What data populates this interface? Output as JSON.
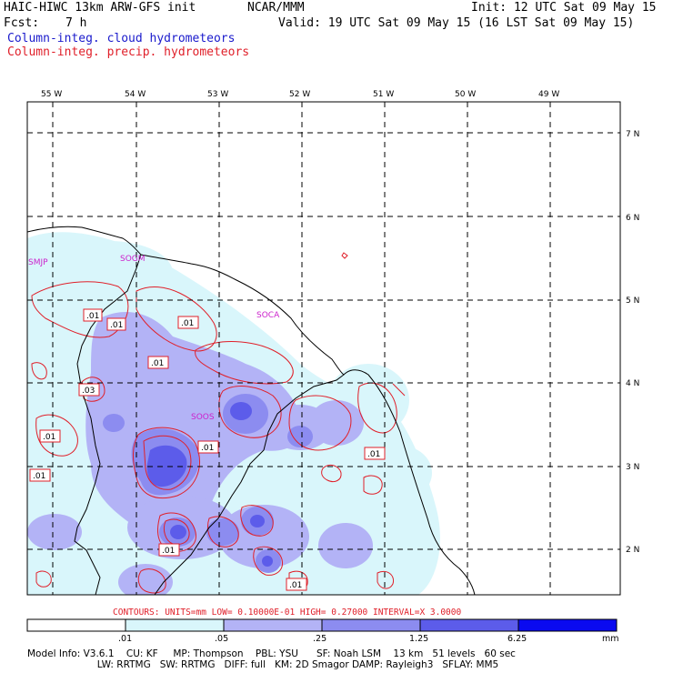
{
  "header": {
    "title_left": "HAIC-HIWC 13km ARW-GFS init",
    "title_mid": "NCAR/MMM",
    "init": "Init: 12 UTC Sat 09 May 15",
    "fcst_label": "Fcst:",
    "fcst_value": "7 h",
    "valid": "Valid: 19 UTC Sat 09 May 15 (16 LST Sat 09 May 15)",
    "legend_cloud": "Column-integ. cloud hydrometeors",
    "legend_precip": "Column-integ. precip. hydrometeors"
  },
  "map": {
    "lon_labels": [
      "55 W",
      "54 W",
      "53 W",
      "52 W",
      "51 W",
      "50 W",
      "49 W"
    ],
    "lat_labels": [
      "7 N",
      "6 N",
      "5 N",
      "4 N",
      "3 N",
      "2 N"
    ],
    "stations": [
      "SMJP",
      "SOGM",
      "SOCA",
      "SOOS"
    ],
    "contour_labels": [
      ".01",
      ".01",
      ".01",
      ".01",
      ".03",
      ".01",
      ".01",
      ".01",
      ".01",
      ".01",
      ".01"
    ],
    "contour_info": "CONTOURS:  UNITS=mm  LOW= 0.10000E-01  HIGH= 0.27000      INTERVAL=X  3.0000",
    "colorbar_ticks": [
      ".01",
      ".05",
      ".25",
      "1.25",
      "6.25"
    ],
    "colorbar_unit": "mm",
    "colorbar_colors": [
      "#ffffff",
      "#d9f6fb",
      "#b3b3f6",
      "#8c8cf0",
      "#5c5cea",
      "#2a2ae6",
      "#0a0af0"
    ]
  },
  "footer": {
    "line1": "Model Info: V3.6.1    CU: KF     MP: Thompson    PBL: YSU      SF: Noah LSM    13 km   51 levels   60 sec",
    "line2": "                       LW: RRTMG   SW: RRTMG   DIFF: full   KM: 2D Smagor DAMP: Rayleigh3   SFLAY: MM5"
  }
}
